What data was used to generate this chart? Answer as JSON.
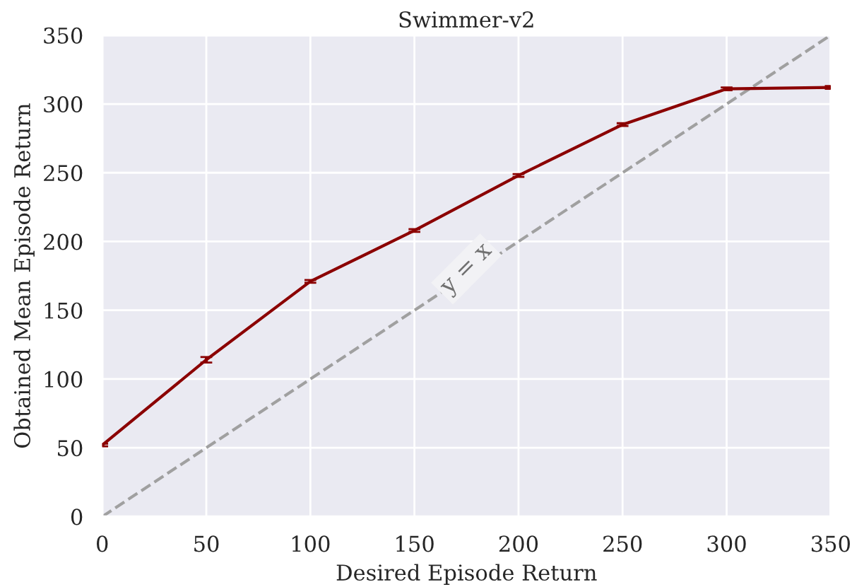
{
  "chart_data": {
    "type": "line",
    "title": "Swimmer-v2",
    "xlabel": "Desired Episode Return",
    "ylabel": "Obtained Mean Episode Return",
    "x": [
      0,
      50,
      100,
      150,
      200,
      250,
      300,
      350
    ],
    "series": [
      {
        "color": "#8b0000",
        "values": [
          52,
          114,
          171,
          208,
          248,
          285,
          311,
          312
        ],
        "errors": [
          1,
          2,
          1,
          1,
          1,
          1,
          1,
          1
        ]
      },
      {
        "type": "line",
        "color": "#a0a0a0",
        "line_style": "dashed",
        "x": [
          0,
          350
        ],
        "values": [
          0,
          350
        ]
      }
    ],
    "annotations": [
      {
        "text": "y = x",
        "x": 175,
        "y": 180
      }
    ],
    "xlim": [
      0,
      350
    ],
    "ylim": [
      0,
      350
    ],
    "xticks": [
      0,
      50,
      100,
      150,
      200,
      250,
      300,
      350
    ],
    "yticks": [
      0,
      50,
      100,
      150,
      200,
      250,
      300,
      350
    ],
    "grid": true,
    "legend": false
  }
}
